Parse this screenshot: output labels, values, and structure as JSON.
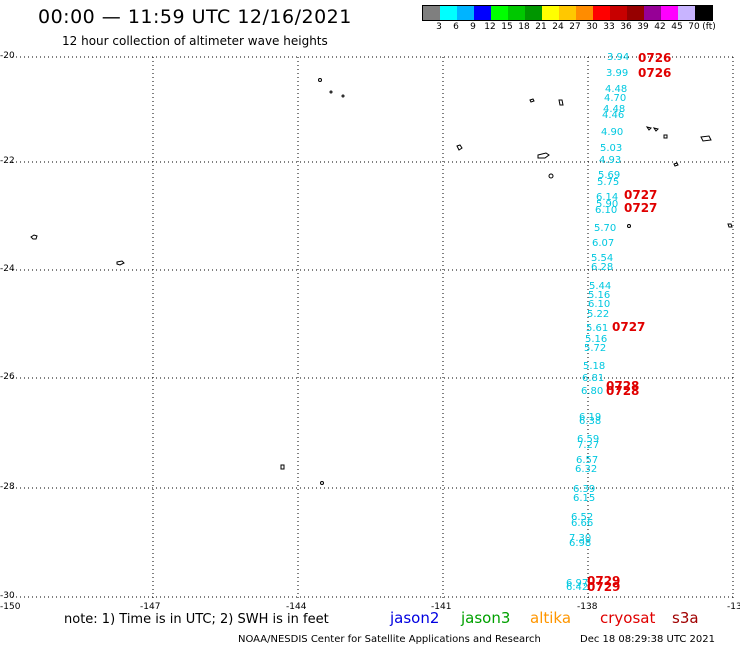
{
  "header": {
    "title": "00:00 — 11:59 UTC 12/16/2021",
    "subtitle": "12 hour collection of altimeter wave heights"
  },
  "colorbar": {
    "colors": [
      "#7f7f7f",
      "#00ffff",
      "#00b4ff",
      "#0000ff",
      "#00ff00",
      "#00c800",
      "#009600",
      "#ffff00",
      "#ffc800",
      "#ff8c00",
      "#ff0000",
      "#c80000",
      "#960000",
      "#960096",
      "#ff00ff",
      "#c8b4ff",
      "#000000"
    ],
    "labels": [
      "3",
      "6",
      "9",
      "12",
      "15",
      "18",
      "21",
      "24",
      "27",
      "30",
      "33",
      "36",
      "39",
      "42",
      "45",
      "70",
      "(ft)"
    ]
  },
  "axes": {
    "lat_labels": [
      "-20",
      "-22",
      "-24",
      "-26",
      "-28",
      "-30"
    ],
    "lon_labels": [
      "-150",
      "-147",
      "-144",
      "-141",
      "-138",
      "-13"
    ]
  },
  "tracks": {
    "wave_heights": [
      "3.94",
      "3.99",
      "4.48",
      "4.70",
      "4.48",
      "4.46",
      "4.90",
      "5.03",
      "4.93",
      "5.69",
      "5.75",
      "6.14",
      "5.90",
      "6.10",
      "5.70",
      "6.07",
      "5.54",
      "6.28",
      "5.44",
      "5.16",
      "6.10",
      "5.22",
      "5.61",
      "5.16",
      "5.72",
      "5.18",
      "6.81",
      "6.80",
      "6.19",
      "6.38",
      "6.59",
      "7.27",
      "6.57",
      "6.32",
      "6.39",
      "6.15",
      "6.52",
      "6.66",
      "7.30",
      "6.98",
      "6.97",
      "6.42"
    ],
    "pass_times": [
      "0726",
      "0726",
      "0727",
      "0727",
      "0727",
      "0728",
      "0728",
      "0729",
      "0729"
    ]
  },
  "footer": {
    "note": "note:  1) Time is in UTC;  2) SWH is in feet",
    "satellites": [
      {
        "name": "jason2",
        "color": "#0000e0"
      },
      {
        "name": "jason3",
        "color": "#00a000"
      },
      {
        "name": "altika",
        "color": "#ff9600"
      },
      {
        "name": "cryosat",
        "color": "#e00000"
      },
      {
        "name": "s3a",
        "color": "#a00000"
      }
    ],
    "credit": "NOAA/NESDIS Center for Satellite Applications and Research",
    "stamp": "Dec 18 08:29:38 UTC 2021"
  }
}
